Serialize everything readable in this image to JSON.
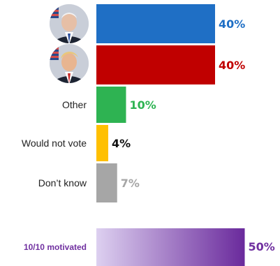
{
  "chart_data": {
    "type": "bar",
    "orientation": "horizontal",
    "categories": [
      "",
      "",
      "Other",
      "Would not vote",
      "Don’t know"
    ],
    "category_icons": [
      "portrait-photo-blue-tie",
      "portrait-photo-red-tie",
      null,
      null,
      null
    ],
    "values": [
      40,
      40,
      10,
      4,
      7
    ],
    "value_labels": [
      "40%",
      "40%",
      "10%",
      "4%",
      "7%"
    ],
    "colors": [
      "#1f6fc5",
      "#c00000",
      "#2eb352",
      "#ffc000",
      "#a6a6a6"
    ],
    "label_colors": [
      "#1f6fc5",
      "#c00000",
      "#2eb352",
      "#111111",
      "#a6a6a6"
    ],
    "unit": "%",
    "grid": false,
    "motivation": {
      "label": "10/10 motivated",
      "value": 50,
      "value_label": "50%",
      "gradient_start": "#ddd0f0",
      "gradient_end": "#6a2a9c",
      "label_color": "#7030a0"
    }
  }
}
